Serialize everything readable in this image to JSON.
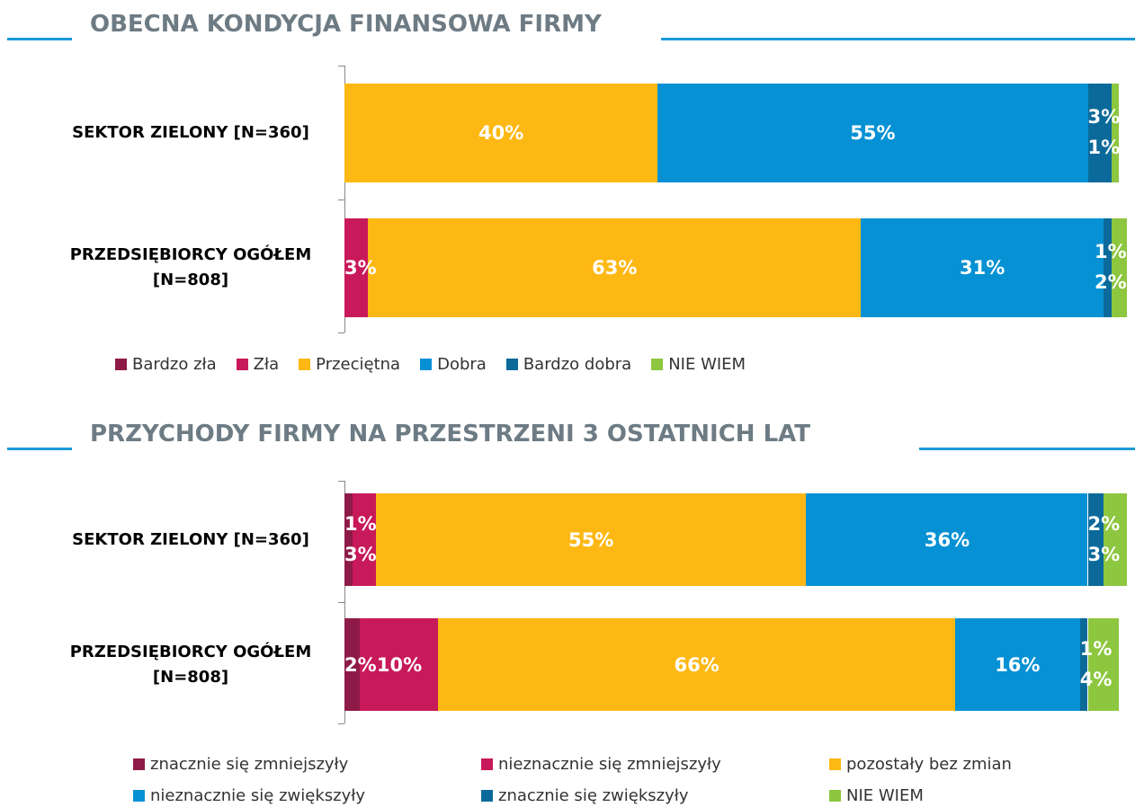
{
  "chart_data": [
    {
      "type": "stacked_bar_horizontal",
      "title": "OBECNA KONDYCJA FINANSOWA FIRMY",
      "categories": [
        "SEKTOR ZIELONY [N=360]",
        "PRZEDSIĘBIORCY OGÓŁEM [N=808]"
      ],
      "xlim": [
        0,
        100
      ],
      "series": [
        {
          "name": "Bardzo zła",
          "color": "#8e1b47",
          "values": [
            0,
            0
          ],
          "value_labels": [
            null,
            null
          ]
        },
        {
          "name": "Zła",
          "color": "#c8195a",
          "values": [
            0,
            3
          ],
          "value_labels": [
            null,
            "3%"
          ]
        },
        {
          "name": "Przeciętna",
          "color": "#fdb813",
          "values": [
            40,
            63
          ],
          "value_labels": [
            "40%",
            "63%"
          ]
        },
        {
          "name": "Dobra",
          "color": "#0591d4",
          "values": [
            55,
            31
          ],
          "value_labels": [
            "55%",
            "31%"
          ]
        },
        {
          "name": "Bardzo dobra",
          "color": "#0b6a9a",
          "values": [
            3,
            1
          ],
          "value_labels": [
            "3%",
            "1%"
          ]
        },
        {
          "name": "NIE WIEM",
          "color": "#8dc63f",
          "values": [
            1,
            2
          ],
          "value_labels": [
            "1%",
            "2%"
          ]
        }
      ]
    },
    {
      "type": "stacked_bar_horizontal",
      "title": "PRZYCHODY FIRMY NA PRZESTRZENI 3 OSTATNICH LAT",
      "categories": [
        "SEKTOR ZIELONY [N=360]",
        "PRZEDSIĘBIORCY OGÓŁEM [N=808]"
      ],
      "xlim": [
        0,
        100
      ],
      "series": [
        {
          "name": "znacznie się zmniejszyły",
          "color": "#8e1b47",
          "values": [
            1,
            2
          ],
          "value_labels": [
            "1%",
            "2%"
          ]
        },
        {
          "name": "nieznacznie się zmniejszyły",
          "color": "#c8195a",
          "values": [
            3,
            10
          ],
          "value_labels": [
            "3%",
            "10%"
          ]
        },
        {
          "name": "pozostały bez zmian",
          "color": "#fdb813",
          "values": [
            55,
            66
          ],
          "value_labels": [
            "55%",
            "66%"
          ]
        },
        {
          "name": "nieznacznie się zwiększyły",
          "color": "#0591d4",
          "values": [
            36,
            16
          ],
          "value_labels": [
            "36%",
            "16%"
          ]
        },
        {
          "name": "znacznie się zwiększyły",
          "color": "#0b6a9a",
          "values": [
            2,
            1
          ],
          "value_labels": [
            "2%",
            "1%"
          ]
        },
        {
          "name": "NIE WIEM",
          "color": "#8dc63f",
          "values": [
            3,
            4
          ],
          "value_labels": [
            "3%",
            "4%"
          ]
        }
      ]
    }
  ]
}
